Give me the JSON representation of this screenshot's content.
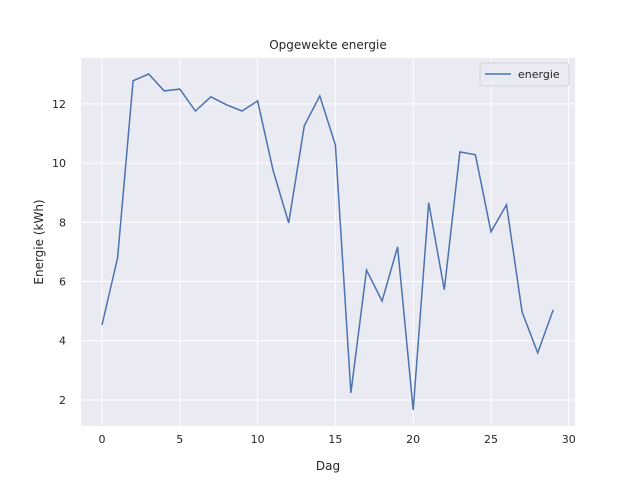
{
  "chart_data": {
    "type": "line",
    "title": "Opgewekte energie",
    "xlabel": "Dag",
    "ylabel": "Energie (kWh)",
    "xlim": [
      -1.35,
      30.4
    ],
    "ylim": [
      1.12,
      13.55
    ],
    "xticks": [
      0,
      5,
      10,
      15,
      20,
      25,
      30
    ],
    "yticks": [
      2,
      4,
      6,
      8,
      10,
      12
    ],
    "grid": true,
    "legend_position": "top-right",
    "colors": {
      "background": "#eaeaf2",
      "grid": "#ffffff",
      "line": "#4c72b0"
    },
    "series": [
      {
        "name": "energie",
        "x": [
          0,
          1,
          2,
          3,
          4,
          5,
          6,
          7,
          8,
          9,
          10,
          11,
          12,
          13,
          14,
          15,
          16,
          17,
          18,
          19,
          20,
          21,
          22,
          23,
          24,
          25,
          26,
          27,
          28,
          29
        ],
        "y": [
          4.53,
          6.8,
          12.78,
          13.01,
          12.44,
          12.5,
          11.76,
          12.24,
          11.97,
          11.76,
          12.1,
          9.74,
          7.98,
          11.26,
          12.27,
          10.61,
          2.24,
          6.39,
          5.34,
          7.17,
          1.66,
          8.66,
          5.72,
          10.38,
          10.28,
          7.68,
          8.59,
          4.97,
          3.59,
          5.04
        ]
      }
    ]
  }
}
